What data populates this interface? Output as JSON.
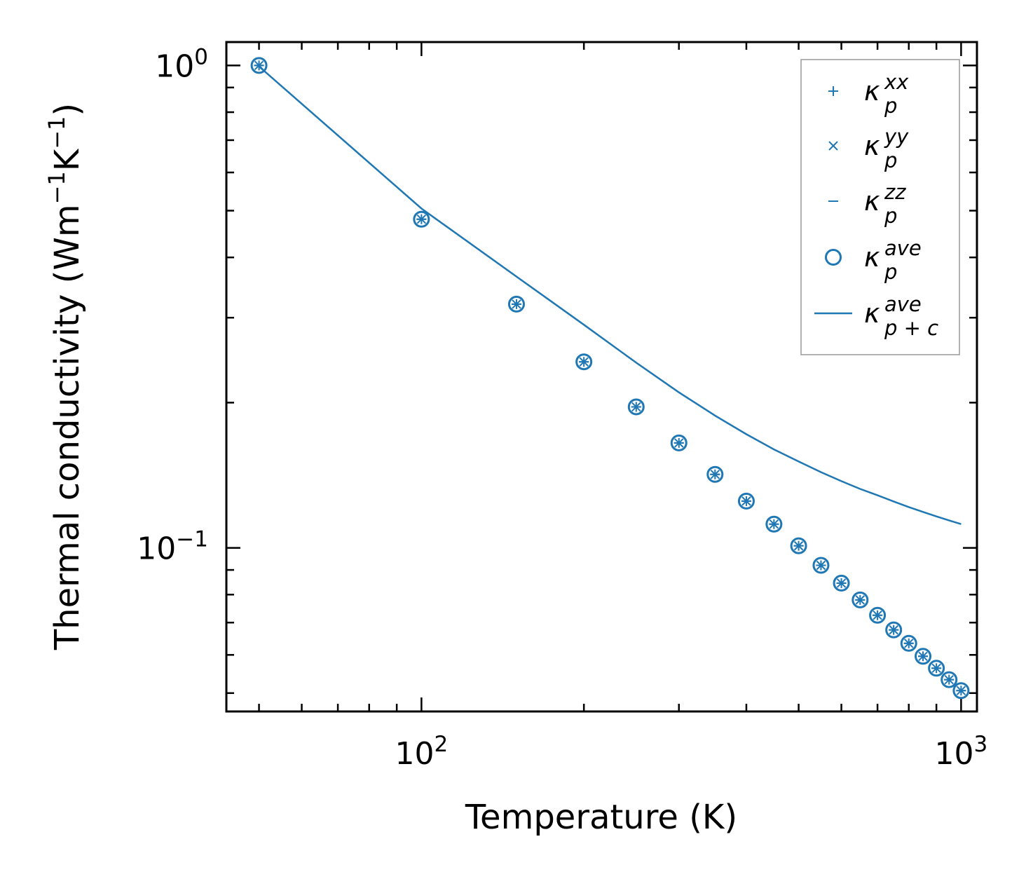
{
  "chart_data": {
    "type": "scatter",
    "xscale": "log",
    "yscale": "log",
    "xlabel": "Temperature (K)",
    "ylabel_main": "Thermal conductivity (Wm",
    "ylabel_sup1": "−1",
    "ylabel_mid": "K",
    "ylabel_sup2": "−1",
    "ylabel_end": ")",
    "xlim": [
      43.5,
      1070
    ],
    "ylim": [
      0.0458,
      1.118
    ],
    "x_ticks": [
      {
        "value": 100,
        "base": "10",
        "exp": "2"
      },
      {
        "value": 1000,
        "base": "10",
        "exp": "3"
      }
    ],
    "y_ticks": [
      {
        "value": 1.0,
        "base": "10",
        "exp": "0"
      },
      {
        "value": 0.1,
        "base": "10",
        "exp": "−1"
      }
    ],
    "color": "#1f77b4",
    "x": [
      50,
      100,
      150,
      200,
      250,
      300,
      350,
      400,
      450,
      500,
      550,
      600,
      650,
      700,
      750,
      800,
      850,
      900,
      950,
      1000
    ],
    "series": [
      {
        "name": "kappa_p_xx",
        "marker": "plus",
        "values": [
          1.0,
          0.48,
          0.32,
          0.243,
          0.196,
          0.165,
          0.142,
          0.125,
          0.112,
          0.101,
          0.092,
          0.0845,
          0.078,
          0.0725,
          0.0676,
          0.0634,
          0.0596,
          0.0563,
          0.0533,
          0.0506
        ]
      },
      {
        "name": "kappa_p_yy",
        "marker": "x",
        "values": [
          1.0,
          0.48,
          0.32,
          0.243,
          0.196,
          0.165,
          0.142,
          0.125,
          0.112,
          0.101,
          0.092,
          0.0845,
          0.078,
          0.0725,
          0.0676,
          0.0634,
          0.0596,
          0.0563,
          0.0533,
          0.0506
        ]
      },
      {
        "name": "kappa_p_zz",
        "marker": "hline",
        "values": [
          1.0,
          0.48,
          0.32,
          0.243,
          0.196,
          0.165,
          0.142,
          0.125,
          0.112,
          0.101,
          0.092,
          0.0845,
          0.078,
          0.0725,
          0.0676,
          0.0634,
          0.0596,
          0.0563,
          0.0533,
          0.0506
        ]
      },
      {
        "name": "kappa_p_ave",
        "marker": "circle",
        "values": [
          1.0,
          0.48,
          0.32,
          0.243,
          0.196,
          0.165,
          0.142,
          0.125,
          0.112,
          0.101,
          0.092,
          0.0845,
          0.078,
          0.0725,
          0.0676,
          0.0634,
          0.0596,
          0.0563,
          0.0533,
          0.0506
        ]
      },
      {
        "name": "kappa_p+c_ave",
        "marker": "line",
        "values": [
          0.995,
          0.505,
          0.365,
          0.29,
          0.242,
          0.21,
          0.188,
          0.172,
          0.16,
          0.151,
          0.1435,
          0.1375,
          0.1325,
          0.1285,
          0.1248,
          0.1215,
          0.1187,
          0.1162,
          0.114,
          0.112
        ]
      }
    ],
    "legend": {
      "position": "top-right",
      "entries": [
        {
          "marker": "plus",
          "base": "κ",
          "sup": "xx",
          "sub": "p"
        },
        {
          "marker": "x",
          "base": "κ",
          "sup": "yy",
          "sub": "p"
        },
        {
          "marker": "hline",
          "base": "κ",
          "sup": "zz",
          "sub": "p"
        },
        {
          "marker": "circle",
          "base": "κ",
          "sup": "ave",
          "sub": "p"
        },
        {
          "marker": "line",
          "base": "κ",
          "sup": "ave",
          "sub": "p + c"
        }
      ]
    },
    "grid": false
  }
}
